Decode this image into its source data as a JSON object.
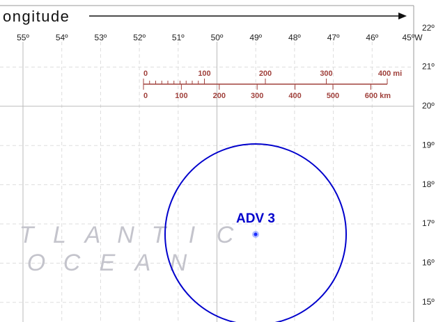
{
  "axis_title": "ongitude",
  "longitudes": [
    "55º",
    "54º",
    "53º",
    "52º",
    "51º",
    "50º",
    "49º",
    "48º",
    "47º",
    "46º",
    "45ºW"
  ],
  "latitudes": [
    "22º",
    "21º",
    "20º",
    "19º",
    "18º",
    "17º",
    "16º",
    "15º"
  ],
  "scale": {
    "miles": [
      "0",
      "100",
      "200",
      "300",
      "400 mi"
    ],
    "km": [
      "0",
      "100",
      "200",
      "300",
      "400",
      "500",
      "600 km"
    ]
  },
  "storm": {
    "label": "ADV 3"
  },
  "ocean": {
    "line1": [
      "T",
      "L",
      "A",
      "N",
      "T",
      "I",
      "C"
    ],
    "line2": [
      "O",
      "C",
      "E",
      "A",
      "N"
    ]
  }
}
